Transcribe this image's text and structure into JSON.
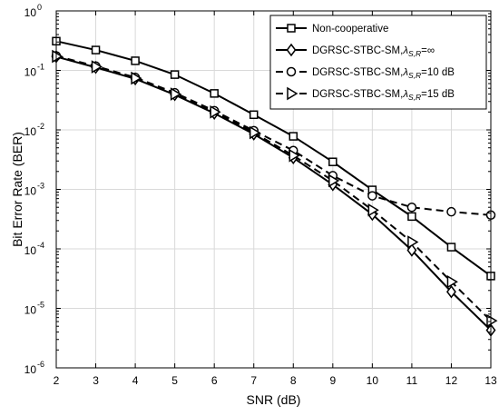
{
  "chart_data": {
    "type": "line",
    "title": "",
    "xlabel": "SNR (dB)",
    "ylabel": "Bit Error Rate (BER)",
    "xlim": [
      2,
      13
    ],
    "ylim": [
      1e-06,
      1
    ],
    "yscale": "log",
    "xticks": [
      2,
      3,
      4,
      5,
      6,
      7,
      8,
      9,
      10,
      11,
      12,
      13
    ],
    "yticks": [
      {
        "value": 1e-06,
        "base": "10",
        "exp": "-6"
      },
      {
        "value": 1e-05,
        "base": "10",
        "exp": "-5"
      },
      {
        "value": 0.0001,
        "base": "10",
        "exp": "-4"
      },
      {
        "value": 0.001,
        "base": "10",
        "exp": "-3"
      },
      {
        "value": 0.01,
        "base": "10",
        "exp": "-2"
      },
      {
        "value": 0.1,
        "base": "10",
        "exp": "-1"
      },
      {
        "value": 1,
        "base": "10",
        "exp": "0"
      }
    ],
    "grid": true,
    "legend_position": "top-right",
    "x": [
      2,
      3,
      4,
      5,
      6,
      7,
      8,
      9,
      10,
      11,
      12,
      13
    ],
    "series": [
      {
        "legend_label": "Non-cooperative",
        "marker": "square",
        "dash": "solid",
        "values": [
          0.31,
          0.22,
          0.145,
          0.085,
          0.041,
          0.018,
          0.0078,
          0.0029,
          0.00098,
          0.00035,
          0.000107,
          3.5e-05
        ]
      },
      {
        "legend_label": "DGRSC-STBC-SM,",
        "lambda": "λ",
        "subscript": "S,R",
        "suffix": "=∞",
        "marker": "diamond",
        "dash": "solid",
        "values": [
          0.17,
          0.112,
          0.072,
          0.039,
          0.019,
          0.0085,
          0.0034,
          0.0012,
          0.00038,
          9.5e-05,
          1.9e-05,
          4.3e-06
        ]
      },
      {
        "legend_label": "DGRSC-STBC-SM,",
        "lambda": "λ",
        "subscript": "S,R",
        "suffix": "=10 dB",
        "marker": "circle",
        "dash": "dashed",
        "values": [
          0.175,
          0.118,
          0.076,
          0.042,
          0.021,
          0.0097,
          0.0045,
          0.0017,
          0.00078,
          0.0005,
          0.00042,
          0.00037
        ]
      },
      {
        "legend_label": "DGRSC-STBC-SM,",
        "lambda": "λ",
        "subscript": "S,R",
        "suffix": "=15 dB",
        "marker": "triangle-right",
        "dash": "dashed",
        "values": [
          0.172,
          0.115,
          0.074,
          0.04,
          0.02,
          0.009,
          0.0037,
          0.0014,
          0.00045,
          0.00013,
          2.8e-05,
          6.2e-06
        ]
      }
    ]
  }
}
